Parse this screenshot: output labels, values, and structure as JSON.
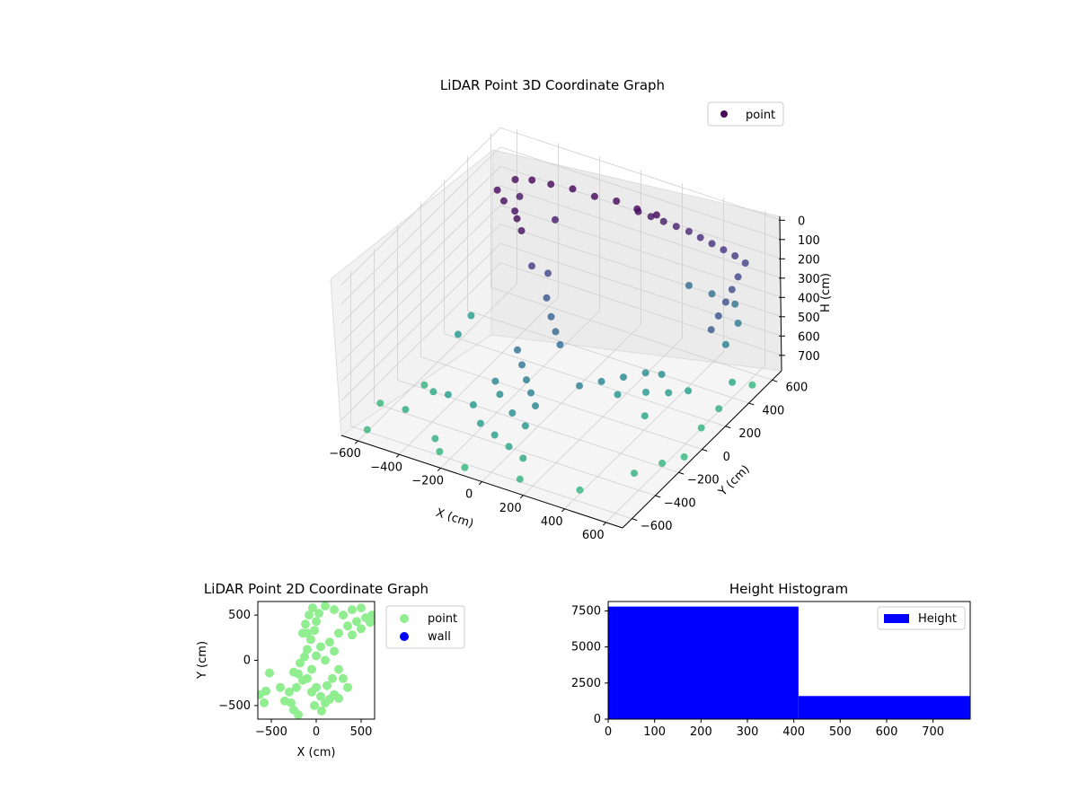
{
  "chart_data": [
    {
      "type": "scatter",
      "subtype": "3d",
      "title": "LiDAR Point 3D Coordinate Graph",
      "xlabel": "X (cm)",
      "ylabel": "Y (cm)",
      "zlabel": "H (cm)",
      "xticks": [
        "−600",
        "−400",
        "−200",
        "0",
        "200",
        "400",
        "600"
      ],
      "yticks": [
        "−600",
        "−400",
        "−200",
        "0",
        "200",
        "400",
        "600"
      ],
      "zticks": [
        "0",
        "100",
        "200",
        "300",
        "400",
        "500",
        "600",
        "700"
      ],
      "xlim": [
        -680,
        680
      ],
      "ylim": [
        -680,
        680
      ],
      "zlim": [
        -20,
        780
      ],
      "z_axis_inverted": true,
      "colormap": "viridis (by height)",
      "legend": [
        {
          "label": "point",
          "color": "#440b57"
        }
      ],
      "legend_position": "upper-right",
      "grid": true,
      "series": [
        {
          "name": "point",
          "points": [
            [
              -450,
              400,
              20
            ],
            [
              -380,
              420,
              10
            ],
            [
              -300,
              440,
              15
            ],
            [
              -200,
              450,
              10
            ],
            [
              -100,
              460,
              20
            ],
            [
              0,
              470,
              15
            ],
            [
              100,
              470,
              20
            ],
            [
              200,
              460,
              10
            ],
            [
              -480,
              300,
              25
            ],
            [
              -420,
              250,
              30
            ],
            [
              -350,
              220,
              40
            ],
            [
              -300,
              150,
              20
            ],
            [
              -250,
              100,
              35
            ],
            [
              -400,
              350,
              60
            ],
            [
              -200,
              300,
              80
            ],
            [
              100,
              480,
              40
            ],
            [
              150,
              500,
              60
            ],
            [
              200,
              520,
              80
            ],
            [
              250,
              540,
              100
            ],
            [
              300,
              560,
              120
            ],
            [
              350,
              570,
              140
            ],
            [
              400,
              580,
              160
            ],
            [
              450,
              590,
              180
            ],
            [
              500,
              600,
              200
            ],
            [
              550,
              600,
              220
            ],
            [
              560,
              520,
              240
            ],
            [
              570,
              450,
              260
            ],
            [
              580,
              380,
              280
            ],
            [
              590,
              300,
              300
            ],
            [
              600,
              220,
              320
            ],
            [
              300,
              560,
              400
            ],
            [
              400,
              580,
              420
            ],
            [
              500,
              600,
              450
            ],
            [
              560,
              520,
              480
            ],
            [
              580,
              380,
              500
            ],
            [
              -200,
              100,
              200
            ],
            [
              -150,
              150,
              250
            ],
            [
              -100,
              50,
              300
            ],
            [
              -50,
              0,
              350
            ],
            [
              0,
              -50,
              380
            ],
            [
              50,
              -100,
              400
            ],
            [
              -100,
              -200,
              420
            ],
            [
              -50,
              -250,
              450
            ],
            [
              0,
              -300,
              480
            ],
            [
              50,
              -350,
              500
            ],
            [
              100,
              -400,
              520
            ],
            [
              -150,
              -300,
              540
            ],
            [
              -100,
              -350,
              560
            ],
            [
              0,
              -420,
              580
            ],
            [
              80,
              -450,
              600
            ],
            [
              -200,
              -400,
              620
            ],
            [
              -120,
              -480,
              640
            ],
            [
              -40,
              -500,
              660
            ],
            [
              40,
              -520,
              680
            ],
            [
              120,
              -540,
              700
            ],
            [
              200,
              -200,
              500
            ],
            [
              250,
              -100,
              520
            ],
            [
              300,
              0,
              540
            ],
            [
              350,
              100,
              560
            ],
            [
              400,
              150,
              580
            ],
            [
              300,
              -50,
              600
            ],
            [
              380,
              50,
              620
            ],
            [
              450,
              120,
              640
            ],
            [
              500,
              200,
              660
            ],
            [
              420,
              -30,
              680
            ],
            [
              -350,
              -350,
              650
            ],
            [
              -450,
              -300,
              700
            ],
            [
              -500,
              -450,
              720
            ],
            [
              -300,
              -550,
              740
            ],
            [
              -550,
              -200,
              760
            ],
            [
              -600,
              -600,
              770
            ],
            [
              -250,
              -600,
              760
            ],
            [
              -650,
              -400,
              770
            ],
            [
              -100,
              -650,
              760
            ],
            [
              150,
              -620,
              750
            ],
            [
              550,
              -350,
              740
            ],
            [
              600,
              -200,
              760
            ],
            [
              650,
              -100,
              770
            ],
            [
              400,
              -550,
              760
            ],
            [
              620,
              100,
              750
            ],
            [
              620,
              250,
              740
            ],
            [
              600,
              400,
              700
            ],
            [
              640,
              500,
              760
            ],
            [
              -500,
              0,
              600
            ],
            [
              -550,
              200,
              640
            ]
          ]
        }
      ]
    },
    {
      "type": "scatter",
      "title": "LiDAR Point 2D Coordinate Graph",
      "xlabel": "X (cm)",
      "ylabel": "Y (cm)",
      "xticks": [
        "−500",
        "0",
        "500"
      ],
      "yticks": [
        "500",
        "0",
        "−500"
      ],
      "xlim": [
        -650,
        650
      ],
      "ylim": [
        -650,
        650
      ],
      "legend": [
        {
          "label": "point",
          "color": "#90ee90"
        },
        {
          "label": "wall",
          "color": "#0000ff"
        }
      ],
      "legend_position": "outside-right",
      "series": [
        {
          "name": "point",
          "points": [
            [
              -630,
              -380
            ],
            [
              -560,
              -340
            ],
            [
              -520,
              -140
            ],
            [
              -580,
              -470
            ],
            [
              -400,
              -300
            ],
            [
              -350,
              -450
            ],
            [
              -280,
              -470
            ],
            [
              -250,
              -550
            ],
            [
              -200,
              -600
            ],
            [
              -300,
              -350
            ],
            [
              -220,
              -300
            ],
            [
              -150,
              -220
            ],
            [
              -250,
              -130
            ],
            [
              -180,
              -30
            ],
            [
              -130,
              40
            ],
            [
              -100,
              120
            ],
            [
              -60,
              230
            ],
            [
              -20,
              330
            ],
            [
              0,
              430
            ],
            [
              30,
              520
            ],
            [
              -150,
              300
            ],
            [
              -120,
              400
            ],
            [
              -80,
              500
            ],
            [
              -40,
              580
            ],
            [
              0,
              -300
            ],
            [
              50,
              -400
            ],
            [
              100,
              -470
            ],
            [
              150,
              -430
            ],
            [
              200,
              -380
            ],
            [
              250,
              -420
            ],
            [
              120,
              -280
            ],
            [
              180,
              -200
            ],
            [
              250,
              -100
            ],
            [
              100,
              0
            ],
            [
              200,
              100
            ],
            [
              150,
              200
            ],
            [
              250,
              300
            ],
            [
              350,
              380
            ],
            [
              450,
              430
            ],
            [
              550,
              470
            ],
            [
              620,
              500
            ],
            [
              600,
              420
            ],
            [
              500,
              350
            ],
            [
              400,
              280
            ],
            [
              300,
              500
            ],
            [
              200,
              560
            ],
            [
              100,
              600
            ],
            [
              400,
              560
            ],
            [
              500,
              580
            ],
            [
              -50,
              -100
            ],
            [
              0,
              50
            ],
            [
              50,
              150
            ],
            [
              -100,
              -200
            ],
            [
              -50,
              -350
            ],
            [
              300,
              -200
            ],
            [
              350,
              -300
            ],
            [
              -20,
              -500
            ],
            [
              60,
              -560
            ],
            [
              -200,
              -150
            ],
            [
              -100,
              300
            ]
          ]
        },
        {
          "name": "wall",
          "points": []
        }
      ]
    },
    {
      "type": "bar",
      "subtype": "histogram",
      "title": "Height Histogram",
      "xticks": [
        "0",
        "100",
        "200",
        "300",
        "400",
        "500",
        "600",
        "700"
      ],
      "yticks": [
        "0",
        "2500",
        "5000",
        "7500"
      ],
      "xlim": [
        0,
        780
      ],
      "ylim": [
        0,
        8150
      ],
      "legend": [
        {
          "label": "Height",
          "color": "#0000ff"
        }
      ],
      "legend_position": "top-right",
      "bins": [
        {
          "x0": 0,
          "x1": 410,
          "count": 7800
        },
        {
          "x0": 410,
          "x1": 780,
          "count": 1600
        }
      ]
    }
  ]
}
